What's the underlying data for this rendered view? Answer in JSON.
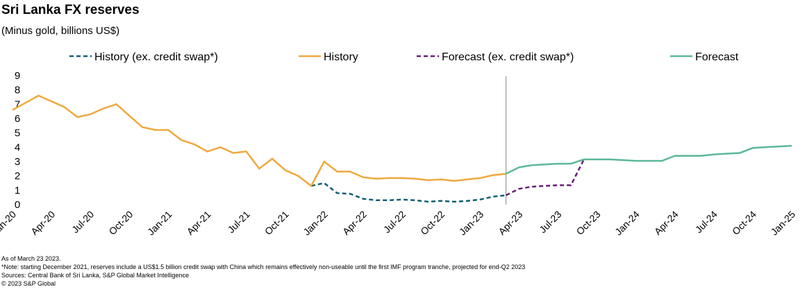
{
  "chart_data": {
    "type": "line",
    "title": "Sri Lanka FX reserves",
    "subtitle": "(Minus gold, billions US$)",
    "notes": [
      "As of March 23 2023.",
      "*Note: starting December 2021, reserves include a US$1.5 billion credit swap with China which remains effectively non-useable until the first IMF program tranche, projected for end-Q2 2023",
      "Sources: Central Bank of Sri Lanka, S&P Global Market Intelligence",
      "© 2023 S&P Global"
    ],
    "categories": [
      "Jan-20",
      null,
      null,
      "Apr-20",
      null,
      null,
      "Jul-20",
      null,
      null,
      "Oct-20",
      null,
      null,
      "Jan-21",
      null,
      null,
      "Apr-21",
      null,
      null,
      "Jul-21",
      null,
      null,
      "Oct-21",
      null,
      null,
      "Jan-22",
      null,
      null,
      "Apr-22",
      null,
      null,
      "Jul-22",
      null,
      null,
      "Oct-22",
      null,
      null,
      "Jan-23",
      null,
      null,
      "Apr-23",
      null,
      null,
      "Jul-23",
      null,
      null,
      "Oct-23",
      null,
      null,
      "Jan-24",
      null,
      null,
      "Apr-24",
      null,
      null,
      "Jul-24",
      null,
      null,
      "Oct-24",
      null,
      null,
      "Jan-25"
    ],
    "ylim": [
      0,
      9
    ],
    "yticks": [
      0,
      1,
      2,
      3,
      4,
      5,
      6,
      7,
      8,
      9
    ],
    "grid": false,
    "series": [
      {
        "name": "History (ex. credit swap*)",
        "color": "#0e5f74",
        "dashed": true,
        "values": [
          null,
          null,
          null,
          null,
          null,
          null,
          null,
          null,
          null,
          null,
          null,
          null,
          null,
          null,
          null,
          null,
          null,
          null,
          null,
          null,
          null,
          null,
          null,
          1.3,
          1.5,
          0.8,
          0.75,
          0.4,
          0.3,
          0.3,
          0.35,
          0.3,
          0.2,
          0.25,
          0.2,
          0.25,
          0.35,
          0.55,
          0.65,
          null,
          null,
          null,
          null,
          null,
          null,
          null,
          null,
          null,
          null,
          null,
          null,
          null,
          null,
          null,
          null,
          null,
          null,
          null,
          null,
          null,
          null
        ]
      },
      {
        "name": "History",
        "color": "#f0a83c",
        "dashed": false,
        "values": [
          6.6,
          7.1,
          7.6,
          7.2,
          6.8,
          6.1,
          6.3,
          6.7,
          7.0,
          6.2,
          5.4,
          5.2,
          5.2,
          4.5,
          4.2,
          3.7,
          4.0,
          3.6,
          3.7,
          2.5,
          3.2,
          2.4,
          2.0,
          1.3,
          3.0,
          2.3,
          2.3,
          1.9,
          1.8,
          1.85,
          1.85,
          1.8,
          1.7,
          1.75,
          1.65,
          1.75,
          1.85,
          2.05,
          2.15,
          null,
          null,
          null,
          null,
          null,
          null,
          null,
          null,
          null,
          null,
          null,
          null,
          null,
          null,
          null,
          null,
          null,
          null,
          null,
          null,
          null,
          null
        ]
      },
      {
        "name": "Forecast (ex. credit swap*)",
        "color": "#6a1b7a",
        "dashed": true,
        "values": [
          null,
          null,
          null,
          null,
          null,
          null,
          null,
          null,
          null,
          null,
          null,
          null,
          null,
          null,
          null,
          null,
          null,
          null,
          null,
          null,
          null,
          null,
          null,
          null,
          null,
          null,
          null,
          null,
          null,
          null,
          null,
          null,
          null,
          null,
          null,
          null,
          null,
          null,
          0.65,
          1.1,
          1.25,
          1.3,
          1.35,
          1.35,
          3.15,
          null,
          null,
          null,
          null,
          null,
          null,
          null,
          null,
          null,
          null,
          null,
          null,
          null,
          null,
          null,
          null
        ]
      },
      {
        "name": "Forecast",
        "color": "#5cb89a",
        "dashed": false,
        "values": [
          null,
          null,
          null,
          null,
          null,
          null,
          null,
          null,
          null,
          null,
          null,
          null,
          null,
          null,
          null,
          null,
          null,
          null,
          null,
          null,
          null,
          null,
          null,
          null,
          null,
          null,
          null,
          null,
          null,
          null,
          null,
          null,
          null,
          null,
          null,
          null,
          null,
          null,
          2.15,
          2.6,
          2.75,
          2.8,
          2.85,
          2.85,
          3.15,
          3.15,
          3.15,
          3.1,
          3.05,
          3.05,
          3.05,
          3.4,
          3.4,
          3.4,
          3.5,
          3.55,
          3.6,
          3.95,
          4.0,
          4.05,
          4.1
        ]
      }
    ]
  }
}
